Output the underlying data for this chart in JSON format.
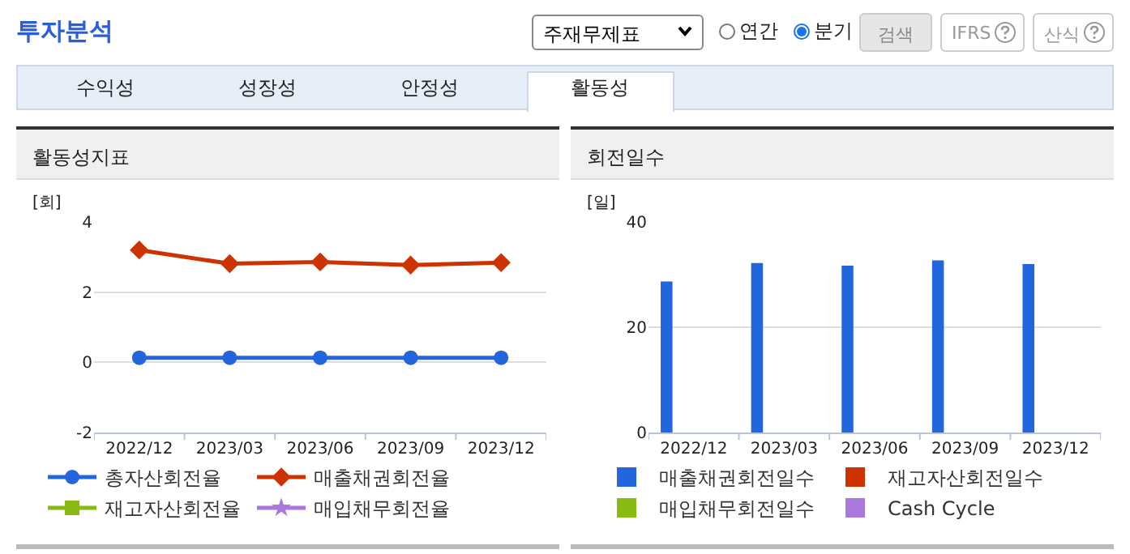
{
  "chart_data": [
    {
      "type": "other",
      "title": "투자분석",
      "annotations": [
        "주재무제표",
        "연간",
        "분기",
        "검색",
        "IFRS",
        "산식",
        "수익성",
        "성장성",
        "안정성",
        "활동성"
      ]
    },
    {
      "type": "line",
      "title": "활동성지표",
      "ylabel": "[회]",
      "categories": [
        "2022/12",
        "2023/03",
        "2023/06",
        "2023/09",
        "2023/12"
      ],
      "series": [
        {
          "name": "총자산회전율",
          "color": "#2266dd",
          "marker": "circle",
          "values": [
            0.13,
            0.13,
            0.13,
            0.13,
            0.13
          ]
        },
        {
          "name": "매출채권회전율",
          "color": "#cc3300",
          "marker": "diamond",
          "values": [
            3.2,
            2.81,
            2.86,
            2.77,
            2.84
          ]
        },
        {
          "name": "재고자산회전율",
          "color": "#88bb11",
          "marker": "square",
          "values": [
            null,
            null,
            null,
            null,
            null
          ]
        },
        {
          "name": "매입채무회전율",
          "color": "#aa77dd",
          "marker": "star",
          "values": [
            null,
            null,
            null,
            null,
            null
          ]
        }
      ],
      "ylim": [
        -2,
        4
      ],
      "yticks": [
        -2,
        0,
        2,
        4
      ],
      "grid": "y",
      "legend": "bottom"
    },
    {
      "type": "bar",
      "title": "회전일수",
      "ylabel": "[일]",
      "categories": [
        "2022/12",
        "2023/03",
        "2023/06",
        "2023/09",
        "2023/12"
      ],
      "series": [
        {
          "name": "매출채권회전일수",
          "color": "#2266dd",
          "values": [
            28.7,
            32.2,
            31.7,
            32.7,
            32.0
          ]
        },
        {
          "name": "재고자산회전일수",
          "color": "#cc3300",
          "values": [
            null,
            null,
            null,
            null,
            null
          ]
        },
        {
          "name": "매입채무회전일수",
          "color": "#88bb11",
          "values": [
            null,
            null,
            null,
            null,
            null
          ]
        },
        {
          "name": "Cash Cycle",
          "color": "#aa77dd",
          "values": [
            null,
            null,
            null,
            null,
            null
          ]
        }
      ],
      "ylim": [
        0,
        40
      ],
      "yticks": [
        0,
        20,
        40
      ],
      "grid": "y",
      "legend": "bottom"
    }
  ]
}
